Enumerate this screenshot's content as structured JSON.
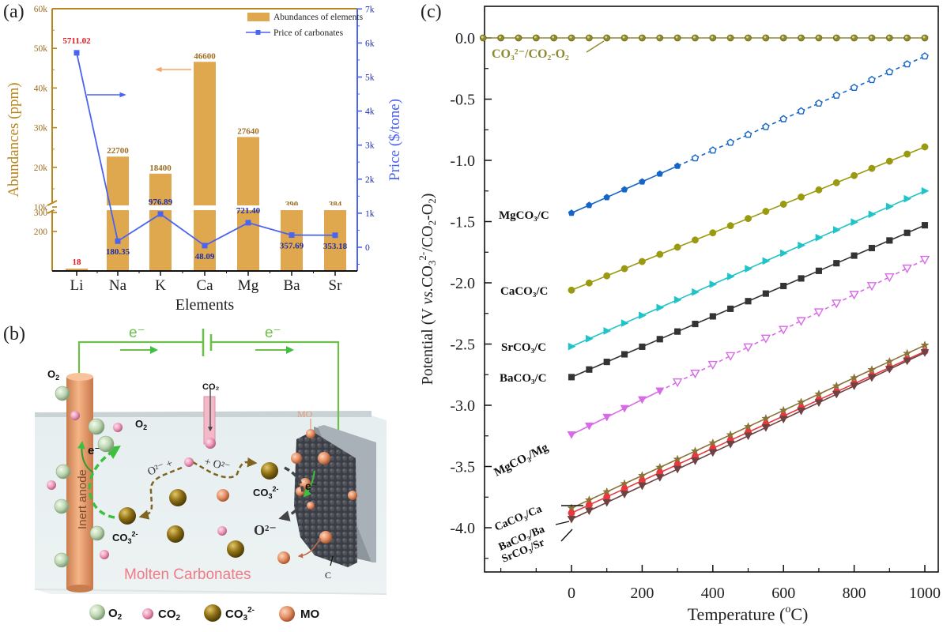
{
  "panels": {
    "a": {
      "label": "(a)"
    },
    "b": {
      "label": "(b)"
    },
    "c": {
      "label": "(c)"
    }
  },
  "colors": {
    "abundance": "#E0A84E",
    "abundance_axis": "#B8861B",
    "abundance_text": "#9C6E20",
    "price": "#4A63F0",
    "price_text": "#1F2FA8",
    "highlight": "#E8141B"
  },
  "chart_data": [
    {
      "id": "a",
      "type": "bar",
      "title": "",
      "xlabel": "Elements",
      "ylabel": "Abundances (ppm)",
      "y2label": "Price ($/tone)",
      "categories": [
        "Li",
        "Na",
        "K",
        "Ca",
        "Mg",
        "Ba",
        "Sr"
      ],
      "y_axis_break": {
        "lower_range": [
          0,
          350
        ],
        "upper_range": [
          10000,
          60000
        ]
      },
      "yticks_lower": [
        "200",
        "300"
      ],
      "yticks_upper": [
        "10k",
        "20k",
        "30k",
        "40k",
        "50k",
        "60k"
      ],
      "y2ticks": [
        "0",
        "1k",
        "2k",
        "3k",
        "4k",
        "5k",
        "6k",
        "7k"
      ],
      "y2lim": [
        -700,
        7000
      ],
      "legend": {
        "position": "top-right",
        "entries": [
          "Abundances of elements",
          "Price of carbonates"
        ]
      },
      "series": [
        {
          "name": "Abundances of elements",
          "type": "bar",
          "axis": "left",
          "values": [
            18,
            22700,
            18400,
            46600,
            27640,
            390,
            384
          ],
          "labels": [
            "18",
            "22700",
            "18400",
            "46600",
            "27640",
            "390",
            "384"
          ]
        },
        {
          "name": "Price of carbonates",
          "type": "line",
          "axis": "right",
          "marker": "square",
          "values": [
            5711.02,
            180.35,
            976.89,
            48.09,
            721.4,
            357.69,
            353.18
          ],
          "labels": [
            "5711.02",
            "180.35",
            "976.89",
            "48.09",
            "721.40",
            "357.69",
            "353.18"
          ]
        }
      ],
      "annotations": [
        {
          "text": "arrow pointing left to abundance axis",
          "direction": "left"
        },
        {
          "text": "arrow pointing right to price axis",
          "direction": "right"
        }
      ]
    },
    {
      "id": "c",
      "type": "line",
      "title": "",
      "xlabel": "Temperature (°C)",
      "xlabel_parts": {
        "main": "Temperature (",
        "sup": "o",
        "end": "C)"
      },
      "ylabel": "Potential (V vs. CO3 2-/CO2-O2)",
      "xlim": [
        -250,
        1030
      ],
      "ylim": [
        -4.35,
        0.23
      ],
      "xticks": [
        0,
        200,
        400,
        600,
        800,
        1000
      ],
      "yticks": [
        0.0,
        -0.5,
        -1.0,
        -1.5,
        -2.0,
        -2.5,
        -3.0,
        -3.5,
        -4.0
      ],
      "ytick_labels": [
        "0.0",
        "-0.5",
        "-1.0",
        "-1.5",
        "-2.0",
        "-2.5",
        "-3.0",
        "-3.5",
        "-4.0"
      ],
      "x": [
        0,
        50,
        100,
        150,
        200,
        250,
        300,
        350,
        400,
        450,
        500,
        550,
        600,
        650,
        700,
        750,
        800,
        850,
        900,
        950,
        1000
      ],
      "series": [
        {
          "name": "CO3 2-/CO2-O2",
          "label": "CO₃²⁻/CO₂-O₂",
          "color": "#8E8A2E",
          "marker": "circle-half",
          "start": 0.0,
          "end": 0.0,
          "x_start": -250,
          "hollow_from": null
        },
        {
          "name": "MgCO3/C",
          "label": "MgCO₃/C",
          "color": "#1565C8",
          "marker": "pentagon",
          "start": -1.43,
          "end": -0.15,
          "hollow_from": 350
        },
        {
          "name": "CaCO3/C",
          "label": "CaCO₃/C",
          "color": "#9A9A10",
          "marker": "circle",
          "start": -2.06,
          "end": -0.89,
          "hollow_from": null
        },
        {
          "name": "SrCO3/C",
          "label": "SrCO₃/C",
          "color": "#1FC4C8",
          "marker": "triangle-right",
          "start": -2.52,
          "end": -1.25,
          "hollow_from": null
        },
        {
          "name": "BaCO3/C",
          "label": "BaCO₃/C",
          "color": "#333333",
          "marker": "square",
          "start": -2.77,
          "end": -1.53,
          "hollow_from": null
        },
        {
          "name": "MgCO3/Mg",
          "label": "MgCO₃/Mg",
          "color": "#D86AE8",
          "marker": "triangle-down",
          "start": -3.24,
          "end": -1.81,
          "hollow_from": 300
        },
        {
          "name": "CaCO3/Ca",
          "label": "CaCO₃/Ca",
          "color": "#8A7238",
          "marker": "star",
          "start": -3.84,
          "end": -2.51,
          "hollow_from": null
        },
        {
          "name": "BaCO3/Ba",
          "label": "BaCO₃/Ba",
          "color": "#E8383D",
          "marker": "circle",
          "start": -3.88,
          "end": -2.56,
          "hollow_from": null
        },
        {
          "name": "SrCO3/Sr",
          "label": "SrCO₃/Sr",
          "color": "#6E4242",
          "marker": "triangle-down",
          "start": -3.93,
          "end": -2.57,
          "hollow_from": null
        }
      ]
    }
  ],
  "diagram_b": {
    "electron_labels": [
      "e⁻",
      "e⁻"
    ],
    "o2_label_top": "O₂",
    "o2_label_mid": "O₂",
    "co2_inlet_label": "CO₂",
    "mo_label": "MO",
    "anode_label": "Inert anode",
    "e_anode": "e⁻",
    "e_cathode": "e⁻",
    "co3_left": "CO₃²⁻",
    "co3_right": "CO₃²⁻",
    "o2minus_left": "O²⁻ +",
    "o2minus_right": "+ O²⁻",
    "o2minus_cathode": "O²⁻",
    "c_label": "C",
    "bath_label": "Molten Carbonates",
    "legend": [
      "O₂",
      "CO₂",
      "CO₃²⁻",
      "MO"
    ]
  }
}
